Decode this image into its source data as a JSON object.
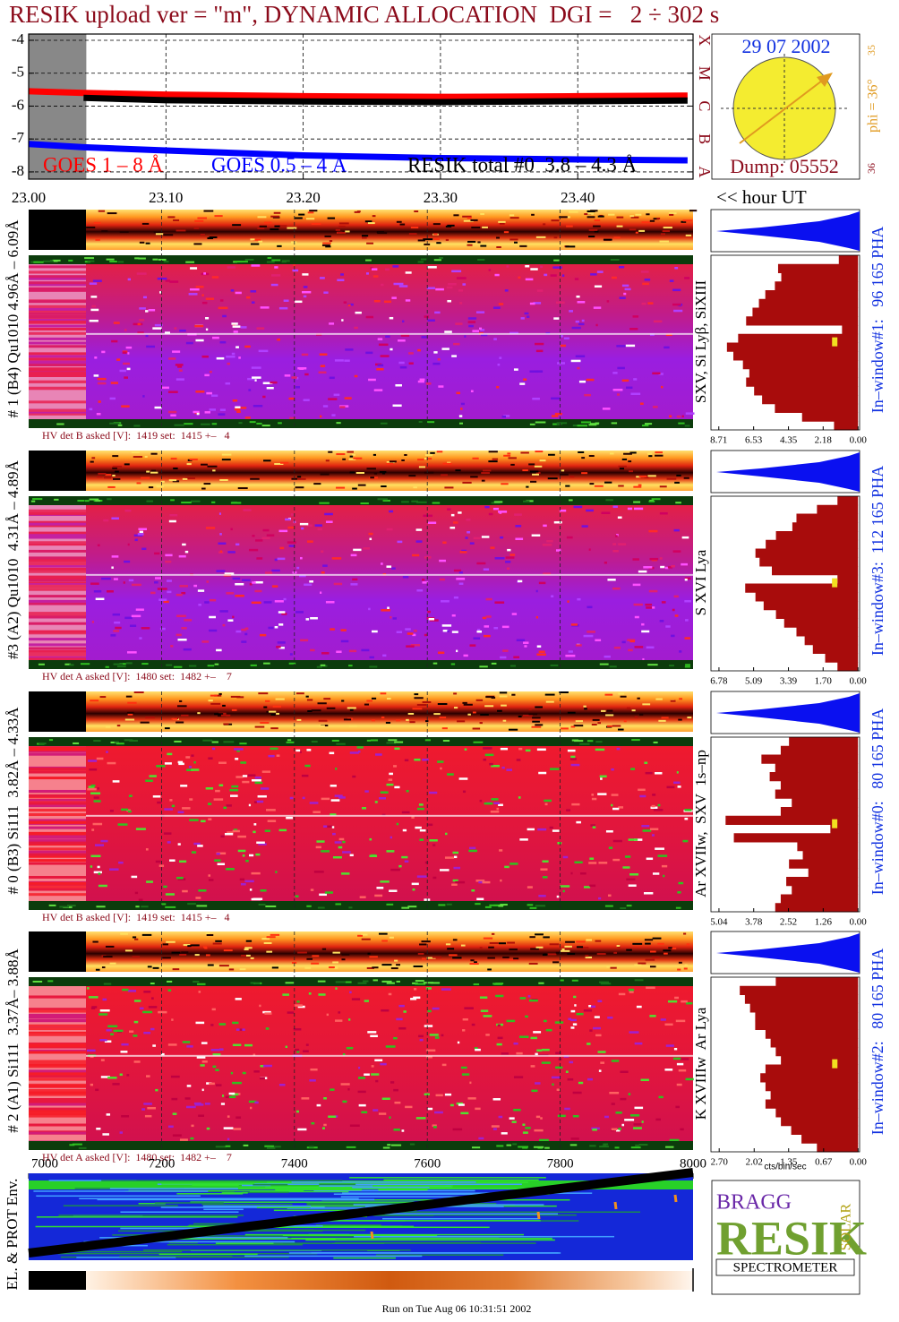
{
  "header": {
    "title": "RESIK upload ver = \"m\", DYNAMIC ALLOCATION  DGI =   2 ÷ 302 s"
  },
  "goes": {
    "type": "line",
    "x": [
      23.0,
      23.04,
      23.1,
      23.2,
      23.3,
      23.4,
      23.48
    ],
    "series": [
      {
        "name": "GOES 1 – 8 Å",
        "color": "#ff0000",
        "values": [
          -5.55,
          -5.6,
          -5.65,
          -5.7,
          -5.72,
          -5.7,
          -5.68
        ]
      },
      {
        "name": "GOES 0.5 – 4 Å",
        "color": "#0000ff",
        "values": [
          -7.15,
          -7.25,
          -7.35,
          -7.5,
          -7.58,
          -7.62,
          -7.65
        ]
      },
      {
        "name": "RESIK total #0  3.8 – 4.3 Å",
        "color": "#000000",
        "values": [
          null,
          -5.75,
          -5.82,
          -5.86,
          -5.88,
          -5.85,
          -5.83
        ]
      }
    ],
    "xlim": [
      23.0,
      23.484
    ],
    "ylim": [
      -8.22,
      -3.81
    ],
    "yticks": [
      -4,
      -5,
      -6,
      -7,
      -8
    ],
    "y2ticks": [
      {
        "value": -4,
        "label": "X"
      },
      {
        "value": -5,
        "label": "M"
      },
      {
        "value": -6,
        "label": "C"
      },
      {
        "value": -7,
        "label": "B"
      },
      {
        "value": -8,
        "label": "A"
      }
    ],
    "xticks": [
      {
        "value": 23.0,
        "label": "23.00"
      },
      {
        "value": 23.1,
        "label": "23.10"
      },
      {
        "value": 23.2,
        "label": "23.20"
      },
      {
        "value": 23.3,
        "label": "23.30"
      },
      {
        "value": 23.4,
        "label": "23.40"
      }
    ],
    "xlabel": "<< hour UT",
    "grid": true,
    "shade": [
      23.0,
      23.042
    ],
    "shade_color": "#888888"
  },
  "sun": {
    "date": "29 07 2002",
    "dump": "Dump: 05552",
    "phi": "phi = 36°",
    "top": "35",
    "bottom": "36"
  },
  "panels": [
    {
      "label": "# 1 (B4) Qu1010 4.96Å – 6.09Å",
      "hv": "HV det B asked [V]:  1419 set:  1415 +–   4",
      "lines": "SXV, Si Lyβ, SiXIII",
      "window": "In–window#1:   96 165 PHA",
      "xlim": [
        9.2,
        -0.1
      ],
      "xticks": [
        8.71,
        6.53,
        4.35,
        2.18,
        {
          "value": 0,
          "label": "0.00"
        }
      ],
      "profile": [
        1.2,
        5.0,
        4.8,
        5.2,
        5.8,
        6.2,
        6.6,
        7.0,
        1.0,
        7.5,
        8.2,
        7.8,
        7.2,
        6.8,
        7.0,
        6.5,
        6.0,
        5.2,
        3.5,
        1.5
      ]
    },
    {
      "label": "#3 (A2) Qu1010  4.31Å – 4.89Å",
      "hv": "HV det A asked [V]:  1480 set:  1482 +–    7",
      "lines": "S XVI Lya",
      "window": "In–window#3:  112 165 PHA",
      "xlim": [
        7.17,
        -0.08
      ],
      "xticks": [
        6.78,
        5.09,
        3.39,
        {
          "value": 1.7,
          "label": "1.70"
        },
        {
          "value": 0,
          "label": "0.00"
        }
      ],
      "profile": [
        1.0,
        2.0,
        3.0,
        3.2,
        4.0,
        4.5,
        5.0,
        4.8,
        4.2,
        1.0,
        5.5,
        5.0,
        4.6,
        4.0,
        3.6,
        3.0,
        2.6,
        2.2,
        1.6,
        1.0
      ]
    },
    {
      "label": "# 0 (B3) Si111  3.82Å – 4.33Å",
      "hv": "HV det B asked [V]:  1419 set:  1415 +–   4",
      "lines": "Ar XVIIw,  SXV  1s–np",
      "window": "In–window#0:   80 165 PHA",
      "xlim": [
        5.33,
        -0.06
      ],
      "xticks": [
        5.04,
        3.78,
        2.52,
        1.26,
        {
          "value": 0,
          "label": "0.00"
        }
      ],
      "profile": [
        2.5,
        2.8,
        3.5,
        3.0,
        3.2,
        2.8,
        3.0,
        2.4,
        2.8,
        4.8,
        1.0,
        4.5,
        2.2,
        2.0,
        2.5,
        1.8,
        2.6,
        2.4,
        2.8,
        3.0
      ]
    },
    {
      "label": "# 2 (A1) Si111  3.37Å– 3.88Å",
      "hv": "HV det A asked [V]:  1480 set:  1482 +–    7",
      "lines": "K XVIIIw  Ar Lya",
      "window": "In–window#2:   80 165 PHA",
      "xlim": [
        2.86,
        -0.03
      ],
      "xticks": [
        {
          "value": 2.7,
          "label": "2.70"
        },
        2.02,
        1.35,
        0.67,
        {
          "value": 0,
          "label": "0.00"
        }
      ],
      "profile": [
        1.6,
        2.3,
        2.2,
        2.1,
        2.0,
        2.0,
        1.8,
        1.7,
        1.6,
        1.5,
        1.8,
        1.9,
        1.8,
        1.7,
        1.8,
        1.6,
        1.5,
        1.3,
        1.1,
        0.8
      ]
    }
  ],
  "hist_xlabel": "cts/bin/sec",
  "env": {
    "label": "EL. & PROT Env.",
    "xlim": [
      7000,
      8000
    ],
    "xticks": [
      7000,
      7200,
      7400,
      7600,
      7800,
      8000
    ]
  },
  "logo": {
    "top": "BRAGG",
    "main": "RESIK",
    "side": "SOLAR",
    "bottom": "SPECTROMETER"
  },
  "footer": "Run on Tue Aug 06 10:31:51 2002"
}
